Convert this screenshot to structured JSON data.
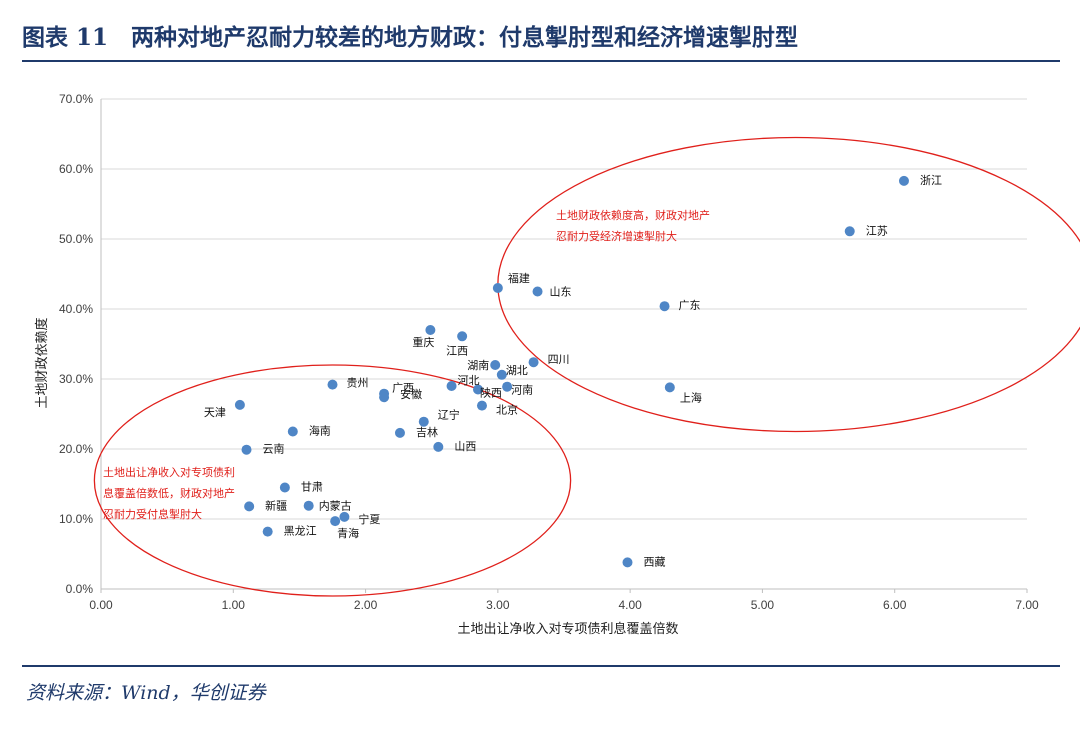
{
  "figure": {
    "title": "图表 11　两种对地产忍耐力较差的地方财政：付息掣肘型和经济增速掣肘型",
    "source": "资料来源：Wind，华创证券"
  },
  "chart_data": {
    "type": "scatter",
    "xlabel": "土地出让净收入对专项债利息覆盖倍数",
    "ylabel": "土地财政依赖度",
    "xlim": [
      0,
      7
    ],
    "ylim": [
      0,
      0.7
    ],
    "x_ticks": [
      "0.00",
      "1.00",
      "2.00",
      "3.00",
      "4.00",
      "5.00",
      "6.00",
      "7.00"
    ],
    "y_ticks": [
      "0.0%",
      "10.0%",
      "20.0%",
      "30.0%",
      "40.0%",
      "50.0%",
      "60.0%",
      "70.0%"
    ],
    "grid": "horizontal",
    "marker_color": "#4f86c6",
    "annotation_color": "#e0201b",
    "points": [
      {
        "label": "浙江",
        "x": 6.07,
        "y": 0.583
      },
      {
        "label": "江苏",
        "x": 5.66,
        "y": 0.511
      },
      {
        "label": "福建",
        "x": 3.0,
        "y": 0.43
      },
      {
        "label": "山东",
        "x": 3.3,
        "y": 0.425
      },
      {
        "label": "广东",
        "x": 4.26,
        "y": 0.404
      },
      {
        "label": "重庆",
        "x": 2.49,
        "y": 0.37
      },
      {
        "label": "江西",
        "x": 2.73,
        "y": 0.361
      },
      {
        "label": "四川",
        "x": 3.27,
        "y": 0.324
      },
      {
        "label": "湖南",
        "x": 2.98,
        "y": 0.32
      },
      {
        "label": "湖北",
        "x": 3.03,
        "y": 0.306
      },
      {
        "label": "河北",
        "x": 2.65,
        "y": 0.29
      },
      {
        "label": "贵州",
        "x": 1.75,
        "y": 0.292
      },
      {
        "label": "陕西",
        "x": 2.85,
        "y": 0.285
      },
      {
        "label": "河南",
        "x": 3.07,
        "y": 0.289
      },
      {
        "label": "广西",
        "x": 2.14,
        "y": 0.279
      },
      {
        "label": "安徽",
        "x": 2.14,
        "y": 0.274
      },
      {
        "label": "上海",
        "x": 4.3,
        "y": 0.288
      },
      {
        "label": "北京",
        "x": 2.88,
        "y": 0.262
      },
      {
        "label": "天津",
        "x": 1.05,
        "y": 0.263
      },
      {
        "label": "辽宁",
        "x": 2.44,
        "y": 0.239
      },
      {
        "label": "海南",
        "x": 1.45,
        "y": 0.225
      },
      {
        "label": "吉林",
        "x": 2.26,
        "y": 0.223
      },
      {
        "label": "山西",
        "x": 2.55,
        "y": 0.203
      },
      {
        "label": "云南",
        "x": 1.1,
        "y": 0.199
      },
      {
        "label": "甘肃",
        "x": 1.39,
        "y": 0.145
      },
      {
        "label": "新疆",
        "x": 1.12,
        "y": 0.118
      },
      {
        "label": "内蒙古",
        "x": 1.57,
        "y": 0.119
      },
      {
        "label": "宁夏",
        "x": 1.84,
        "y": 0.103
      },
      {
        "label": "青海",
        "x": 1.77,
        "y": 0.097
      },
      {
        "label": "黑龙江",
        "x": 1.26,
        "y": 0.082
      },
      {
        "label": "西藏",
        "x": 3.98,
        "y": 0.038
      }
    ],
    "annotations": [
      {
        "lines": [
          "土地财政依赖度高，财政对地产",
          "忍耐力受经济增速掣肘大"
        ]
      },
      {
        "lines": [
          "土地出让净收入对专项债利",
          "息覆盖倍数低，财政对地产",
          "忍耐力受付息掣肘大"
        ]
      }
    ]
  }
}
